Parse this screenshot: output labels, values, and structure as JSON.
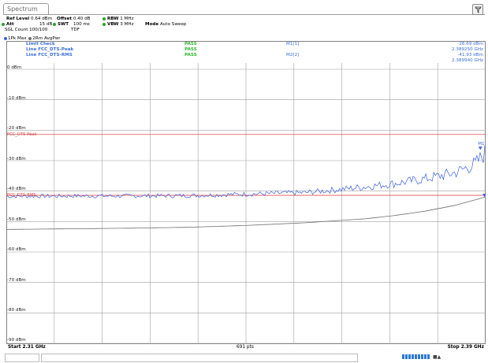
{
  "window": {
    "tab_title": "Spectrum"
  },
  "params": {
    "ref_level_label": "Ref Level",
    "ref_level_value": "0.64 dBm",
    "offset_label": "Offset",
    "offset_value": "0.40 dB",
    "rbw_label": "RBW",
    "rbw_value": "1 MHz",
    "att_label": "Att",
    "att_value": "15 dB",
    "swt_label": "SWT",
    "swt_value": "100 ms",
    "vbw_label": "VBW",
    "vbw_value": "3 MHz",
    "mode_label": "Mode",
    "mode_value": "Auto Sweep",
    "sgl_count": "SGL Count 100/100",
    "tdf": "TDF"
  },
  "traces": {
    "t1": "1Pk Max",
    "t2": "2Rm AvgPwr"
  },
  "limit_check": {
    "rows": [
      {
        "name": "Limit Check",
        "result": "PASS"
      },
      {
        "name": "Line FCC_DTS-Peak",
        "result": "PASS"
      },
      {
        "name": "Line FCC_DTS-RMS",
        "result": "PASS"
      }
    ]
  },
  "markers": {
    "m1_label": "M1[1]",
    "m1_level": "-26.69 dBm",
    "m1_freq": "2.389250 GHz",
    "m2_label": "M2[2]",
    "m2_level": "-41.93 dBm",
    "m2_freq": "2.389940 GHz",
    "m1_tag": "M1"
  },
  "limit_lines": {
    "peak_label": "FCC_DTS-Peak",
    "rms_label": "FCC_DTS-RMS"
  },
  "footer": {
    "start": "Start 2.31 GHz",
    "points": "691 pts",
    "stop": "Stop 2.39 GHz"
  },
  "colors": {
    "trace1": "#3b5fe0",
    "trace2": "#6e6e6e",
    "limit": "#e05050",
    "grid": "#a0a0a0"
  },
  "chart_data": {
    "type": "line",
    "xlim": [
      2.31,
      2.39
    ],
    "ylim": [
      -90,
      0
    ],
    "yticks": [
      "0 dBm",
      "-10 dBm",
      "-20 dBm",
      "-30 dBm",
      "-40 dBm",
      "-50 dBm",
      "-60 dBm",
      "-70 dBm",
      "-80 dBm",
      "-90 dBm"
    ],
    "limit_peak": -21.4,
    "limit_rms": -41.4,
    "series": [
      {
        "name": "1Pk Max",
        "x": [
          2.31,
          2.32,
          2.33,
          2.34,
          2.35,
          2.36,
          2.365,
          2.37,
          2.375,
          2.38,
          2.385,
          2.3885,
          2.39
        ],
        "values": [
          -41.7,
          -41.6,
          -41.6,
          -41.5,
          -41.0,
          -40.5,
          -39.6,
          -38.6,
          -37.5,
          -36.0,
          -34.0,
          -31.0,
          -27.5
        ]
      },
      {
        "name": "2Rm AvgPwr",
        "x": [
          2.31,
          2.32,
          2.33,
          2.34,
          2.35,
          2.36,
          2.37,
          2.375,
          2.38,
          2.385,
          2.39
        ],
        "values": [
          -52.6,
          -52.4,
          -52.2,
          -51.9,
          -51.3,
          -50.4,
          -49.1,
          -48.0,
          -46.6,
          -44.7,
          -42.0
        ]
      }
    ]
  }
}
